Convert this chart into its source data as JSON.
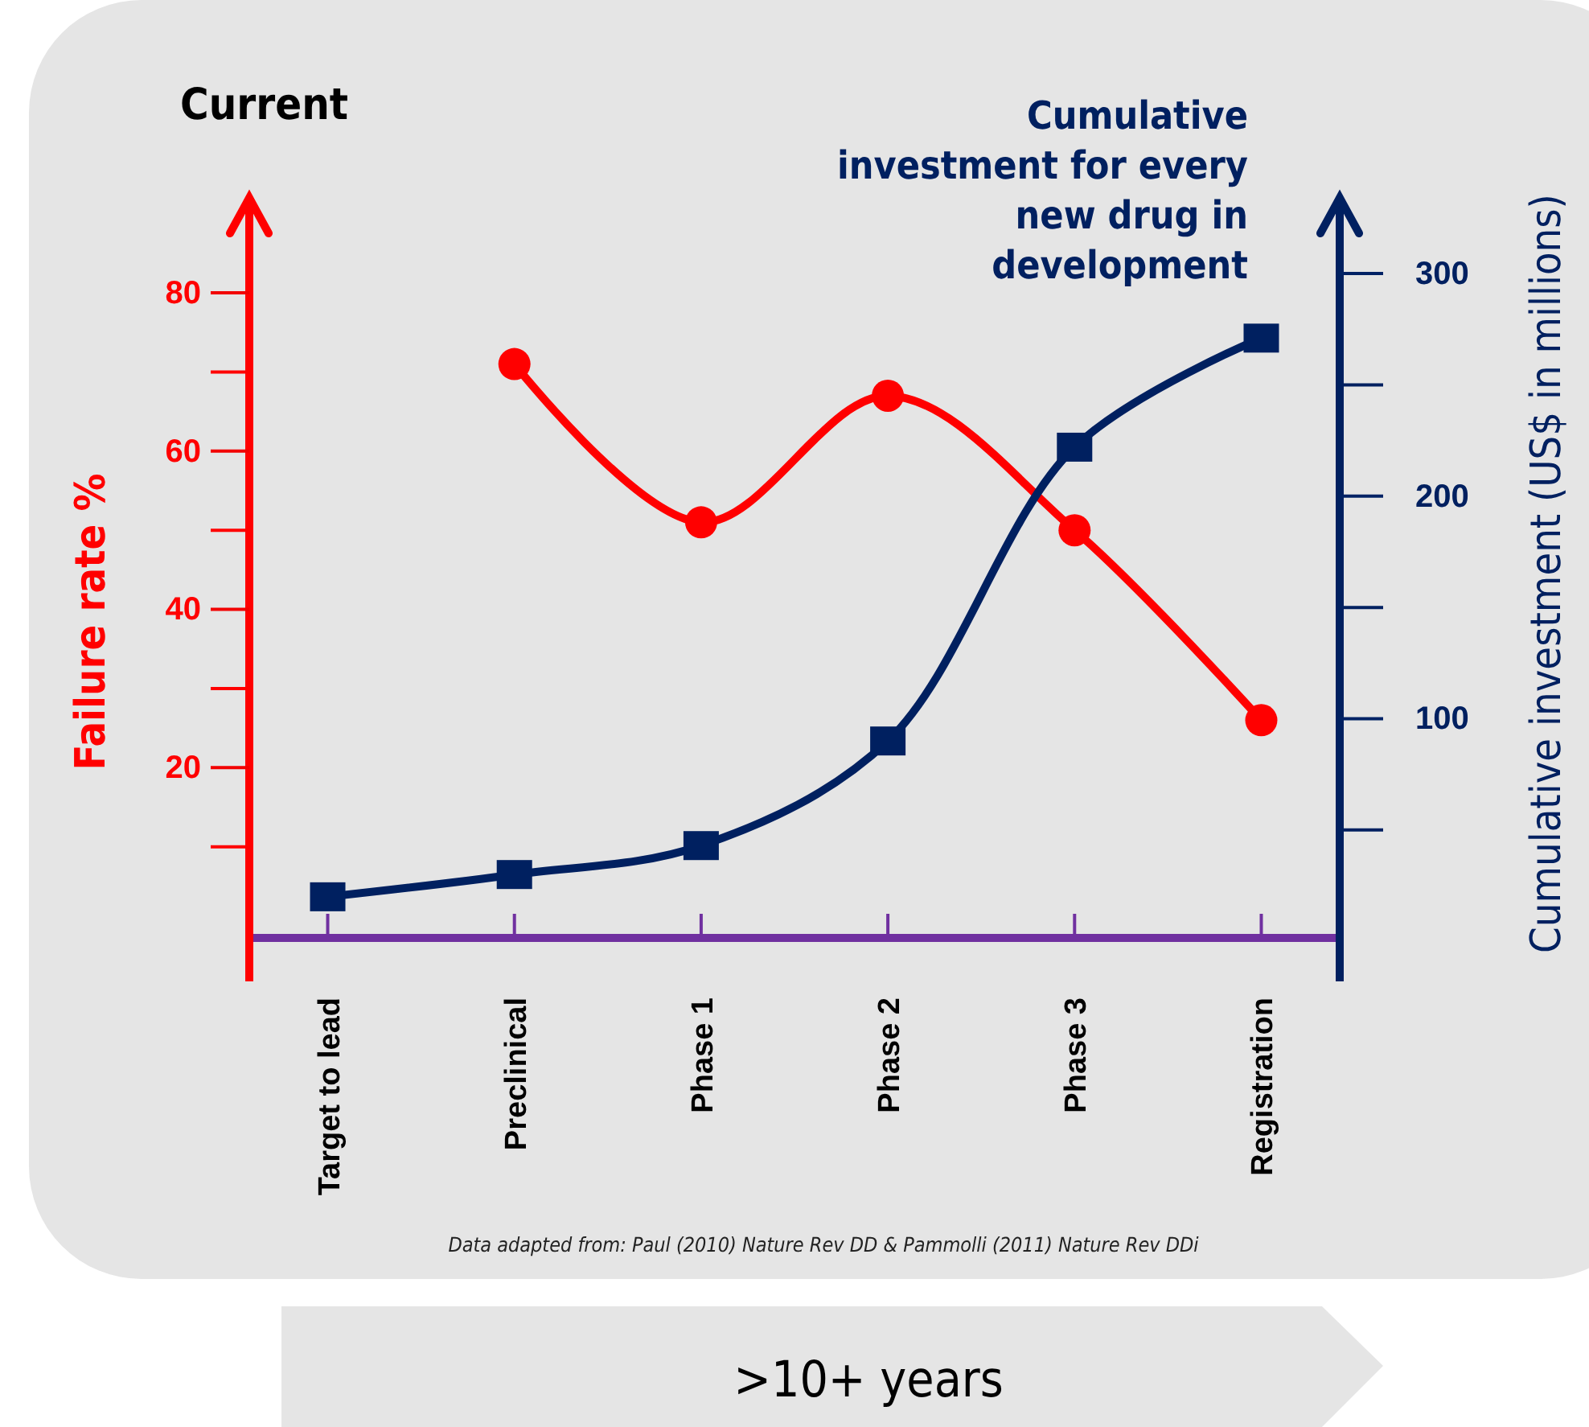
{
  "chart_data": {
    "type": "line",
    "title": "Current",
    "ylabel": "Failure rate %",
    "y2label": "Cumulative investment (US$ in millions)",
    "categories": [
      "Target to lead",
      "Preclinical",
      "Phase 1",
      "Phase 2",
      "Phase 3",
      "Registration"
    ],
    "series": [
      {
        "color": "#ff0000",
        "marker": "circle",
        "values": [
          null,
          71,
          51,
          67,
          50,
          26
        ]
      },
      {
        "color": "#002060",
        "marker": "square",
        "axis": "y2",
        "values": [
          20,
          30,
          43,
          90,
          222,
          271
        ]
      }
    ],
    "ylim": [
      -7,
      92
    ],
    "yticks": [
      20,
      40,
      60,
      80
    ],
    "y2lim": [
      -18,
      334
    ],
    "y2ticks": [
      100,
      200,
      300
    ],
    "annotations": [
      "Cumulative investment for every new drug in development",
      "Data adapted from: Paul (2010) Nature Rev DD & Pammolli (2011) Nature Rev DDi",
      ">10+ years"
    ]
  }
}
